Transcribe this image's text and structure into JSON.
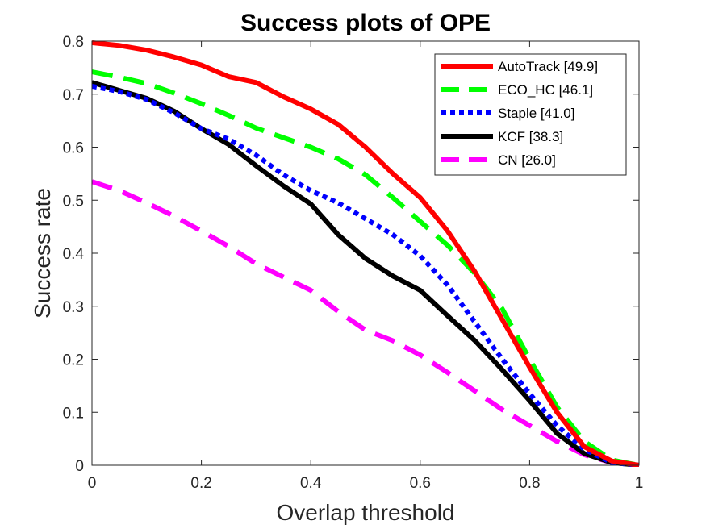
{
  "chart_data": {
    "type": "line",
    "title": "Success plots of OPE",
    "xlabel": "Overlap threshold",
    "ylabel": "Success rate",
    "xlim": [
      0,
      1
    ],
    "ylim": [
      0,
      0.8
    ],
    "xticks": [
      0,
      0.2,
      0.4,
      0.6,
      0.8,
      1
    ],
    "xtick_labels": [
      "0",
      "0.2",
      "0.4",
      "0.6",
      "0.8",
      "1"
    ],
    "yticks": [
      0,
      0.1,
      0.2,
      0.3,
      0.4,
      0.5,
      0.6,
      0.7,
      0.8
    ],
    "ytick_labels": [
      "0",
      "0.1",
      "0.2",
      "0.3",
      "0.4",
      "0.5",
      "0.6",
      "0.7",
      "0.8"
    ],
    "grid": false,
    "legend_position": "top-right",
    "x": [
      0,
      0.05,
      0.1,
      0.15,
      0.2,
      0.25,
      0.3,
      0.35,
      0.4,
      0.45,
      0.5,
      0.55,
      0.6,
      0.65,
      0.7,
      0.75,
      0.8,
      0.85,
      0.9,
      0.95,
      1
    ],
    "series": [
      {
        "name": "AutoTrack [49.9]",
        "color": "#ff0000",
        "dash": "solid",
        "values": [
          0.797,
          0.792,
          0.783,
          0.77,
          0.755,
          0.733,
          0.722,
          0.695,
          0.672,
          0.643,
          0.6,
          0.55,
          0.505,
          0.442,
          0.365,
          0.275,
          0.185,
          0.1,
          0.035,
          0.008,
          0.0
        ]
      },
      {
        "name": "ECO_HC [46.1]",
        "color": "#00ff00",
        "dash": "dashed",
        "values": [
          0.742,
          0.732,
          0.72,
          0.702,
          0.682,
          0.66,
          0.636,
          0.618,
          0.6,
          0.578,
          0.548,
          0.505,
          0.46,
          0.415,
          0.362,
          0.295,
          0.2,
          0.11,
          0.045,
          0.01,
          0.0
        ]
      },
      {
        "name": "Staple [41.0]",
        "color": "#0000ff",
        "dash": "dotted",
        "values": [
          0.715,
          0.705,
          0.69,
          0.665,
          0.635,
          0.615,
          0.585,
          0.548,
          0.518,
          0.495,
          0.465,
          0.435,
          0.395,
          0.34,
          0.27,
          0.2,
          0.135,
          0.075,
          0.03,
          0.005,
          0.0
        ]
      },
      {
        "name": "KCF [38.3]",
        "color": "#000000",
        "dash": "solid",
        "values": [
          0.722,
          0.707,
          0.692,
          0.668,
          0.635,
          0.605,
          0.565,
          0.527,
          0.493,
          0.435,
          0.39,
          0.357,
          0.33,
          0.282,
          0.235,
          0.18,
          0.122,
          0.06,
          0.022,
          0.005,
          0.0
        ]
      },
      {
        "name": "CN [26.0]",
        "color": "#ff00ff",
        "dash": "dashed",
        "values": [
          0.535,
          0.518,
          0.495,
          0.47,
          0.442,
          0.413,
          0.38,
          0.355,
          0.33,
          0.29,
          0.255,
          0.235,
          0.208,
          0.175,
          0.14,
          0.105,
          0.075,
          0.045,
          0.02,
          0.005,
          0.0
        ]
      }
    ]
  }
}
